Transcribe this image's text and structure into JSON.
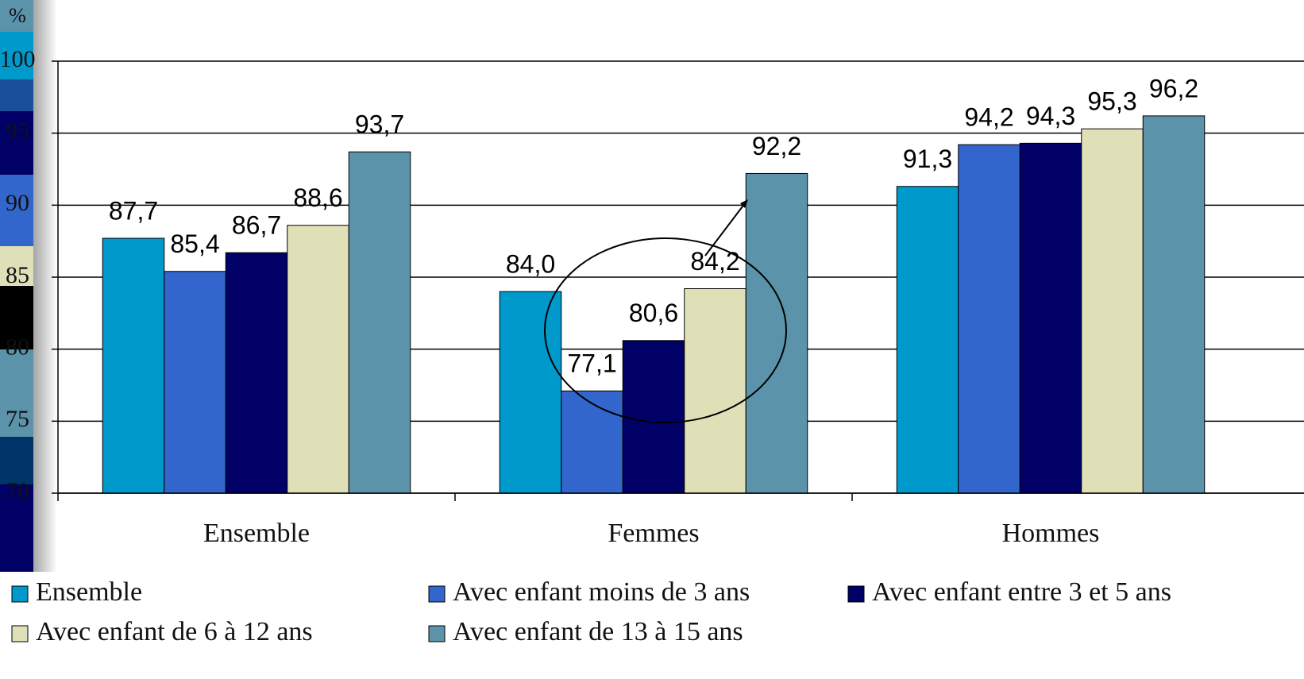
{
  "chart_data": {
    "type": "bar",
    "y_label": "%",
    "categories": [
      "Ensemble",
      "Femmes",
      "Hommes"
    ],
    "series": [
      {
        "name": "Ensemble",
        "color": "#0099CC",
        "values": [
          87.7,
          84.0,
          91.3
        ],
        "value_labels": [
          "87,7",
          "84,0",
          "91,3"
        ]
      },
      {
        "name": "Avec enfant moins de 3 ans",
        "color": "#3366CC",
        "values": [
          85.4,
          77.1,
          94.2
        ],
        "value_labels": [
          "85,4",
          "77,1",
          "94,2"
        ]
      },
      {
        "name": "Avec enfant entre 3 et 5 ans",
        "color": "#000066",
        "values": [
          86.7,
          80.6,
          94.3
        ],
        "value_labels": [
          "86,7",
          "80,6",
          "94,3"
        ]
      },
      {
        "name": "Avec enfant de 6 à 12 ans",
        "color": "#E0E0B8",
        "values": [
          88.6,
          84.2,
          95.3
        ],
        "value_labels": [
          "88,6",
          "84,2",
          "95,3"
        ]
      },
      {
        "name": "Avec enfant de 13 à 15 ans",
        "color": "#5B93AB",
        "values": [
          93.7,
          92.2,
          96.2
        ],
        "value_labels": [
          "93,7",
          "92,2",
          "96,2"
        ]
      }
    ],
    "ylim": [
      70,
      100
    ],
    "yticks": [
      70,
      75,
      80,
      85,
      90,
      95,
      100
    ],
    "grid": true
  }
}
